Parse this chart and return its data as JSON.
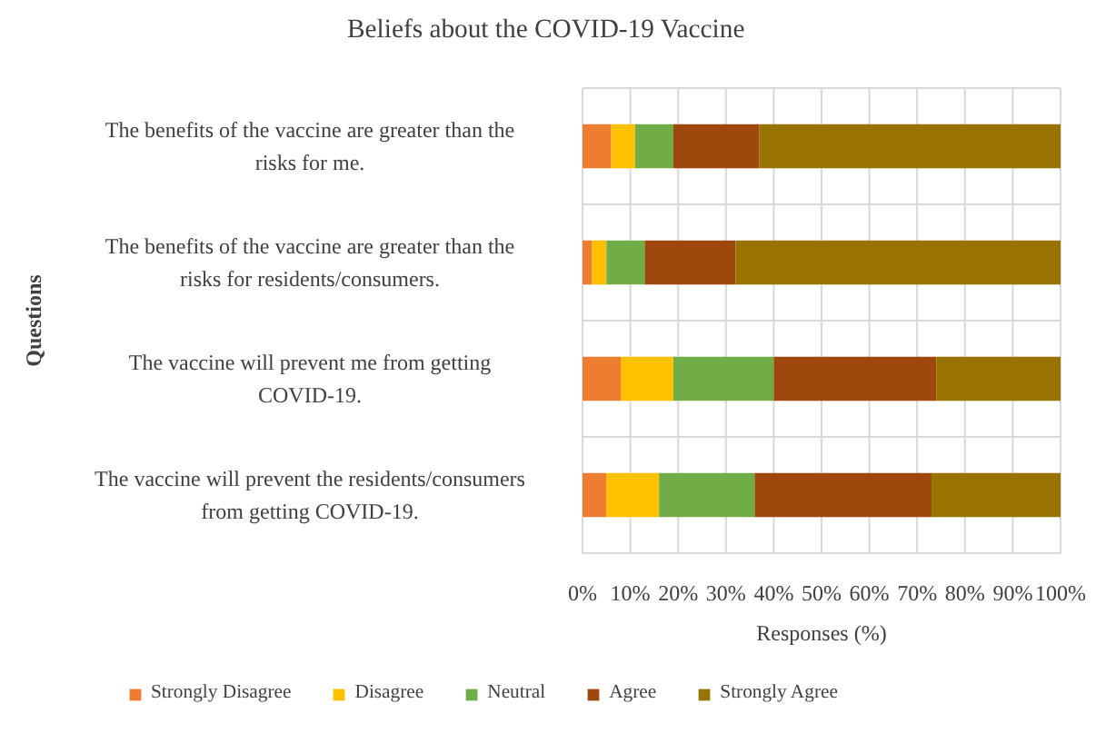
{
  "chart_data": {
    "type": "bar",
    "orientation": "horizontal",
    "stacked": true,
    "title": "Beliefs about the COVID-19 Vaccine",
    "xlabel": "Responses (%)",
    "ylabel": "Questions",
    "categories": [
      "The benefits of the vaccine are greater than the risks for me.",
      "The benefits of the vaccine are greater than the risks for residents/consumers.",
      "The vaccine will prevent me from getting COVID-19.",
      "The vaccine will prevent the residents/consumers from getting COVID-19."
    ],
    "series": [
      {
        "name": "Strongly Disagree",
        "color": "#ed7d31",
        "values": [
          6,
          2,
          8,
          5
        ]
      },
      {
        "name": "Disagree",
        "color": "#ffc000",
        "values": [
          5,
          3,
          11,
          11
        ]
      },
      {
        "name": "Neutral",
        "color": "#70ad47",
        "values": [
          8,
          8,
          21,
          20
        ]
      },
      {
        "name": "Agree",
        "color": "#9e480e",
        "values": [
          18,
          19,
          34,
          37
        ]
      },
      {
        "name": "Strongly Agree",
        "color": "#997300",
        "values": [
          63,
          68,
          26,
          27
        ]
      }
    ],
    "xlim": [
      0,
      100
    ],
    "xticks": [
      {
        "value": 0,
        "label": "0%"
      },
      {
        "value": 10,
        "label": "10%"
      },
      {
        "value": 20,
        "label": "20%"
      },
      {
        "value": 30,
        "label": "30%"
      },
      {
        "value": 40,
        "label": "40%"
      },
      {
        "value": 50,
        "label": "50%"
      },
      {
        "value": 60,
        "label": "60%"
      },
      {
        "value": 70,
        "label": "70%"
      },
      {
        "value": 80,
        "label": "80%"
      },
      {
        "value": 90,
        "label": "90%"
      },
      {
        "value": 100,
        "label": "100%"
      }
    ],
    "grid": true,
    "legend": "bottom"
  }
}
